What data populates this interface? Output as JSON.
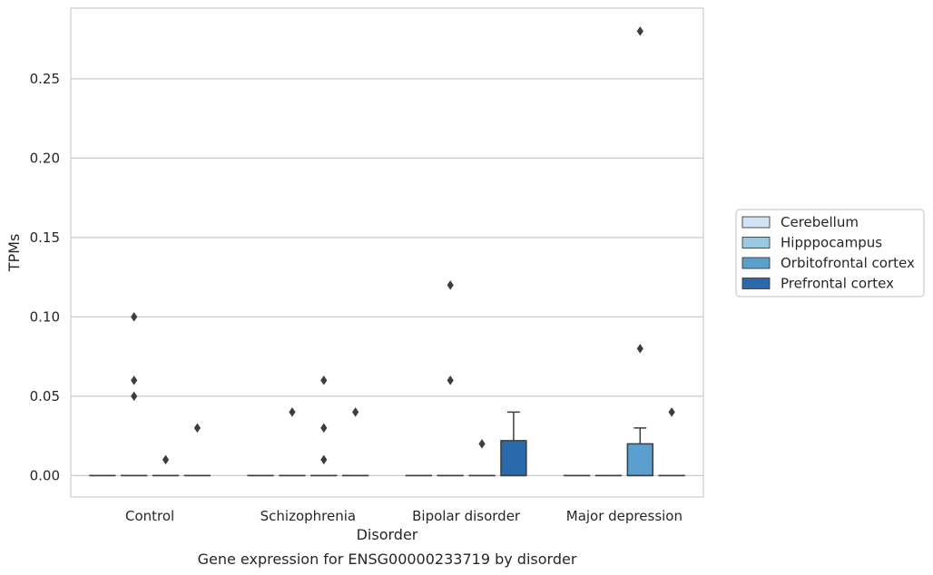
{
  "chart_data": {
    "type": "box",
    "caption": "Gene expression for ENSG00000233719 by disorder",
    "xlabel": "Disorder",
    "ylabel": "TPMs",
    "ylim": [
      -0.0135,
      0.2945
    ],
    "yticks": [
      0.0,
      0.05,
      0.1,
      0.15,
      0.2,
      0.25
    ],
    "ytick_labels": [
      "0.00",
      "0.05",
      "0.10",
      "0.15",
      "0.20",
      "0.25"
    ],
    "grid": "horizontal",
    "legend_position": "right",
    "categories": [
      "Control",
      "Schizophrenia",
      "Bipolar disorder",
      "Major depression"
    ],
    "series": [
      {
        "name": "Cerebellum",
        "color": "#d2e3f3",
        "boxes": [
          {
            "q1": 0,
            "median": 0,
            "q3": 0,
            "whisker_low": 0,
            "whisker_high": 0,
            "outliers": []
          },
          {
            "q1": 0,
            "median": 0,
            "q3": 0,
            "whisker_low": 0,
            "whisker_high": 0,
            "outliers": []
          },
          {
            "q1": 0,
            "median": 0,
            "q3": 0,
            "whisker_low": 0,
            "whisker_high": 0,
            "outliers": []
          },
          {
            "q1": 0,
            "median": 0,
            "q3": 0,
            "whisker_low": 0,
            "whisker_high": 0,
            "outliers": []
          }
        ]
      },
      {
        "name": "Hipppocampus",
        "color": "#9ac8e0",
        "boxes": [
          {
            "q1": 0,
            "median": 0,
            "q3": 0,
            "whisker_low": 0,
            "whisker_high": 0,
            "outliers": [
              0.1,
              0.06,
              0.05
            ]
          },
          {
            "q1": 0,
            "median": 0,
            "q3": 0,
            "whisker_low": 0,
            "whisker_high": 0,
            "outliers": [
              0.04
            ]
          },
          {
            "q1": 0,
            "median": 0,
            "q3": 0,
            "whisker_low": 0,
            "whisker_high": 0,
            "outliers": [
              0.12,
              0.06
            ]
          },
          {
            "q1": 0,
            "median": 0,
            "q3": 0,
            "whisker_low": 0,
            "whisker_high": 0,
            "outliers": []
          }
        ]
      },
      {
        "name": "Orbitofrontal cortex",
        "color": "#5a9fcd",
        "boxes": [
          {
            "q1": 0,
            "median": 0,
            "q3": 0,
            "whisker_low": 0,
            "whisker_high": 0,
            "outliers": [
              0.01
            ]
          },
          {
            "q1": 0,
            "median": 0,
            "q3": 0,
            "whisker_low": 0,
            "whisker_high": 0,
            "outliers": [
              0.06,
              0.03,
              0.01
            ]
          },
          {
            "q1": 0,
            "median": 0,
            "q3": 0,
            "whisker_low": 0,
            "whisker_high": 0,
            "outliers": [
              0.02
            ]
          },
          {
            "q1": 0,
            "median": 0,
            "q3": 0.02,
            "whisker_low": 0,
            "whisker_high": 0.03,
            "outliers": [
              0.28,
              0.08
            ]
          }
        ]
      },
      {
        "name": "Prefrontal cortex",
        "color": "#2a6aaa",
        "boxes": [
          {
            "q1": 0,
            "median": 0,
            "q3": 0,
            "whisker_low": 0,
            "whisker_high": 0,
            "outliers": [
              0.03
            ]
          },
          {
            "q1": 0,
            "median": 0,
            "q3": 0,
            "whisker_low": 0,
            "whisker_high": 0,
            "outliers": [
              0.04
            ]
          },
          {
            "q1": 0,
            "median": 0,
            "q3": 0.022,
            "whisker_low": 0,
            "whisker_high": 0.04,
            "outliers": []
          },
          {
            "q1": 0,
            "median": 0,
            "q3": 0,
            "whisker_low": 0,
            "whisker_high": 0,
            "outliers": [
              0.04
            ]
          }
        ]
      }
    ]
  }
}
